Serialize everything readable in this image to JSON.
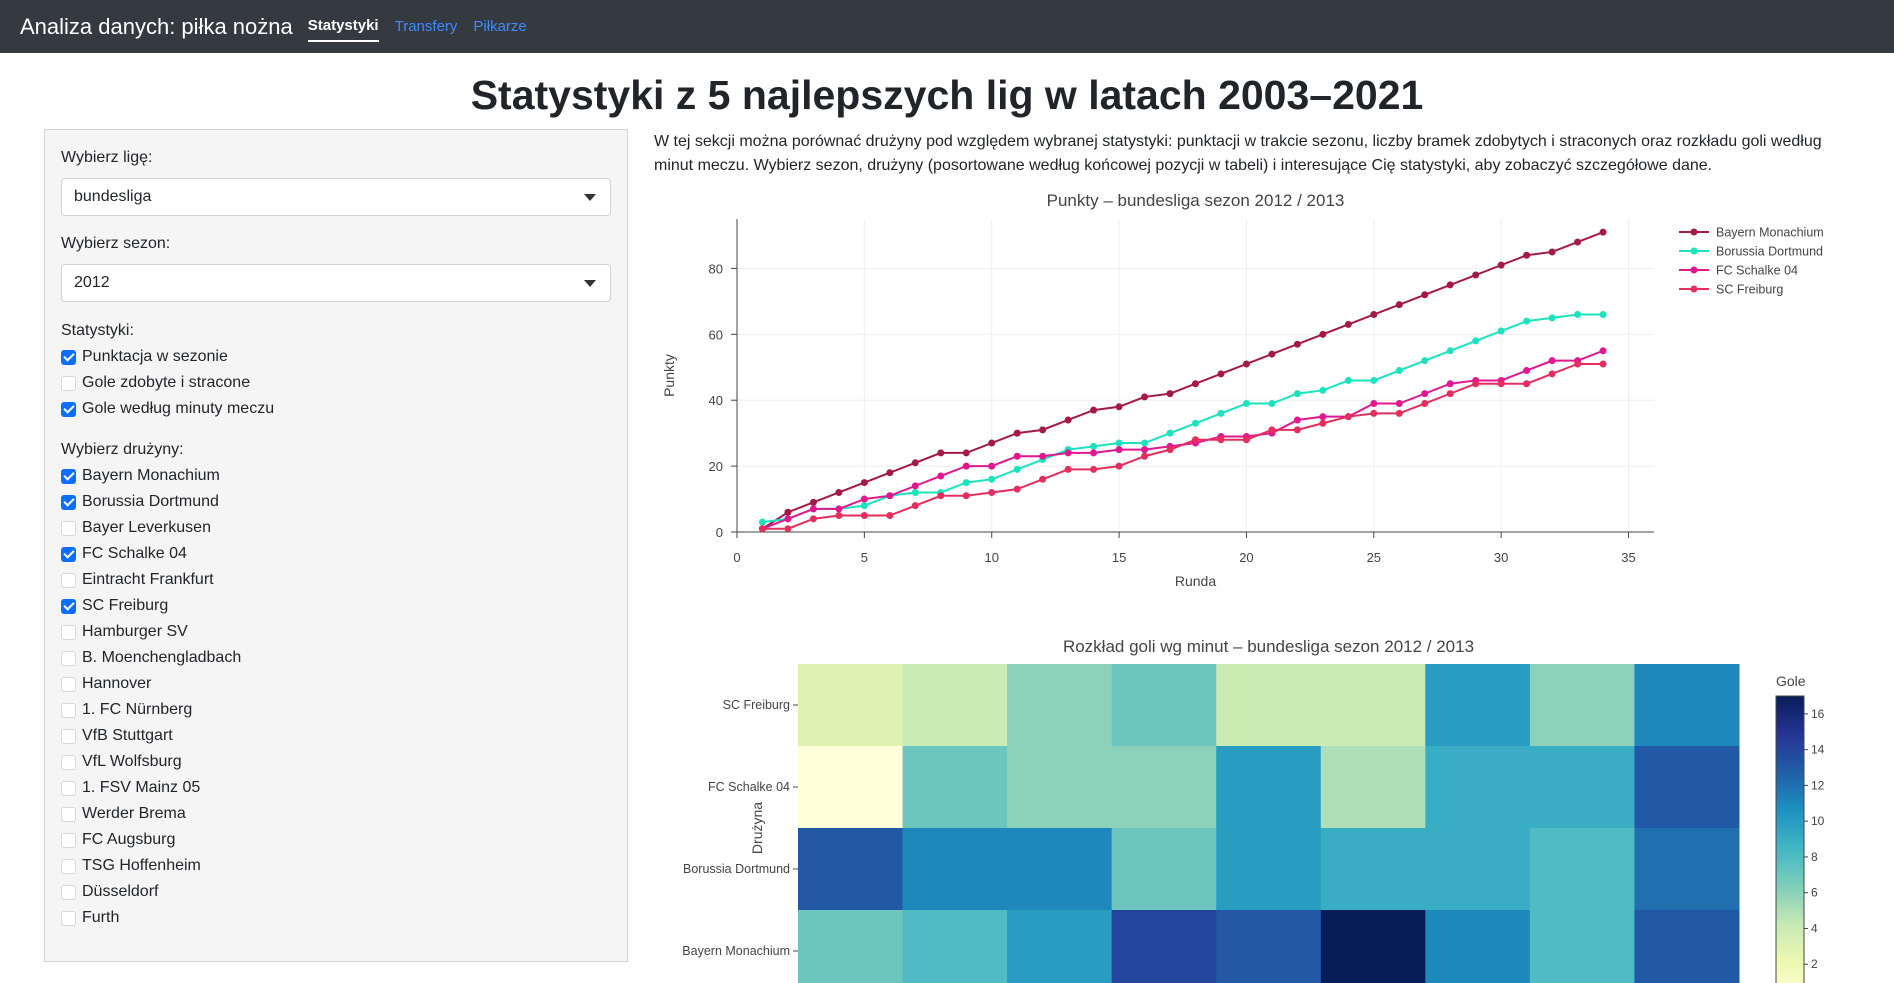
{
  "navbar": {
    "brand": "Analiza danych: piłka nożna",
    "links": [
      {
        "label": "Statystyki",
        "active": true
      },
      {
        "label": "Transfery",
        "active": false
      },
      {
        "label": "Piłkarze",
        "active": false
      }
    ]
  },
  "page_title": "Statystyki z 5 najlepszych lig w latach 2003–2021",
  "sidebar": {
    "league_label": "Wybierz ligę:",
    "league_value": "bundesliga",
    "season_label": "Wybierz sezon:",
    "season_value": "2012",
    "stats_label": "Statystyki:",
    "stats": [
      {
        "label": "Punktacja w sezonie",
        "checked": true
      },
      {
        "label": "Gole zdobyte i stracone",
        "checked": false
      },
      {
        "label": "Gole według minuty meczu",
        "checked": true
      }
    ],
    "teams_label": "Wybierz drużyny:",
    "teams": [
      {
        "label": "Bayern Monachium",
        "checked": true
      },
      {
        "label": "Borussia Dortmund",
        "checked": true
      },
      {
        "label": "Bayer Leverkusen",
        "checked": false
      },
      {
        "label": "FC Schalke 04",
        "checked": true
      },
      {
        "label": "Eintracht Frankfurt",
        "checked": false
      },
      {
        "label": "SC Freiburg",
        "checked": true
      },
      {
        "label": "Hamburger SV",
        "checked": false
      },
      {
        "label": "B. Moenchengladbach",
        "checked": false
      },
      {
        "label": "Hannover",
        "checked": false
      },
      {
        "label": "1. FC Nürnberg",
        "checked": false
      },
      {
        "label": "VfB Stuttgart",
        "checked": false
      },
      {
        "label": "VfL Wolfsburg",
        "checked": false
      },
      {
        "label": "1. FSV Mainz 05",
        "checked": false
      },
      {
        "label": "Werder Brema",
        "checked": false
      },
      {
        "label": "FC Augsburg",
        "checked": false
      },
      {
        "label": "TSG Hoffenheim",
        "checked": false
      },
      {
        "label": "Düsseldorf",
        "checked": false
      },
      {
        "label": "Furth",
        "checked": false
      }
    ]
  },
  "intro": "W tej sekcji można porównać drużyny pod względem wybranej statystyki: punktacji w trakcie sezonu, liczby bramek zdobytych i straconych oraz rozkładu goli według minut meczu. Wybierz sezon, drużyny (posortowane według końcowej pozycji w tabeli) i interesujące Cię statystyki, aby zobaczyć szczegółowe dane.",
  "chart_data": [
    {
      "type": "line",
      "title": "Punkty – bundesliga sezon 2012 / 2013",
      "xlabel": "Runda",
      "ylabel": "Punkty",
      "xlim": [
        0,
        36
      ],
      "ylim": [
        0,
        95
      ],
      "xticks": [
        0,
        5,
        10,
        15,
        20,
        25,
        30,
        35
      ],
      "yticks": [
        0,
        20,
        40,
        60,
        80
      ],
      "grid": true,
      "legend_position": "top-right",
      "x": [
        1,
        2,
        3,
        4,
        5,
        6,
        7,
        8,
        9,
        10,
        11,
        12,
        13,
        14,
        15,
        16,
        17,
        18,
        19,
        20,
        21,
        22,
        23,
        24,
        25,
        26,
        27,
        28,
        29,
        30,
        31,
        32,
        33,
        34
      ],
      "series": [
        {
          "name": "Bayern Monachium",
          "color": "#a3194a",
          "values": [
            1,
            6,
            9,
            12,
            15,
            18,
            21,
            24,
            24,
            27,
            30,
            31,
            34,
            37,
            38,
            41,
            42,
            45,
            48,
            51,
            54,
            57,
            60,
            63,
            66,
            69,
            72,
            75,
            78,
            81,
            84,
            85,
            88,
            91
          ]
        },
        {
          "name": "Borussia Dortmund",
          "color": "#1be3be",
          "values": [
            3,
            4,
            7,
            7,
            8,
            11,
            12,
            12,
            15,
            16,
            19,
            22,
            25,
            26,
            27,
            27,
            30,
            33,
            36,
            39,
            39,
            42,
            43,
            46,
            46,
            49,
            52,
            55,
            58,
            61,
            64,
            65,
            66,
            66
          ]
        },
        {
          "name": "FC Schalke 04",
          "color": "#e0178f",
          "values": [
            1,
            4,
            7,
            7,
            10,
            11,
            14,
            17,
            20,
            20,
            23,
            23,
            24,
            24,
            25,
            25,
            26,
            27,
            29,
            29,
            30,
            34,
            35,
            35,
            39,
            39,
            42,
            45,
            46,
            46,
            49,
            52,
            52,
            55
          ]
        },
        {
          "name": "SC Freiburg",
          "color": "#e52e5e",
          "values": [
            1,
            1,
            4,
            5,
            5,
            5,
            8,
            11,
            11,
            12,
            13,
            16,
            19,
            19,
            20,
            23,
            25,
            28,
            28,
            28,
            31,
            31,
            33,
            35,
            36,
            36,
            39,
            42,
            45,
            45,
            45,
            48,
            51,
            51
          ]
        }
      ]
    },
    {
      "type": "heatmap",
      "title": "Rozkład goli wg minut – bundesliga sezon 2012 / 2013",
      "ylabel": "Drużyna",
      "colorbar_title": "Gole",
      "colorbar_ticks": [
        2,
        4,
        6,
        8,
        10,
        12,
        14,
        16
      ],
      "zmin": 0,
      "zmax": 17,
      "rows": [
        "SC Freiburg",
        "FC Schalke 04",
        "Borussia Dortmund",
        "Bayern Monachium"
      ],
      "values": [
        [
          3,
          4,
          6,
          7,
          4,
          4,
          10,
          6,
          11
        ],
        [
          0,
          7,
          6,
          6,
          10,
          5,
          9,
          9,
          13
        ],
        [
          13,
          11,
          11,
          7,
          10,
          9,
          9,
          8,
          12
        ],
        [
          7,
          8,
          10,
          14,
          13,
          17,
          11,
          8,
          13
        ]
      ]
    }
  ]
}
